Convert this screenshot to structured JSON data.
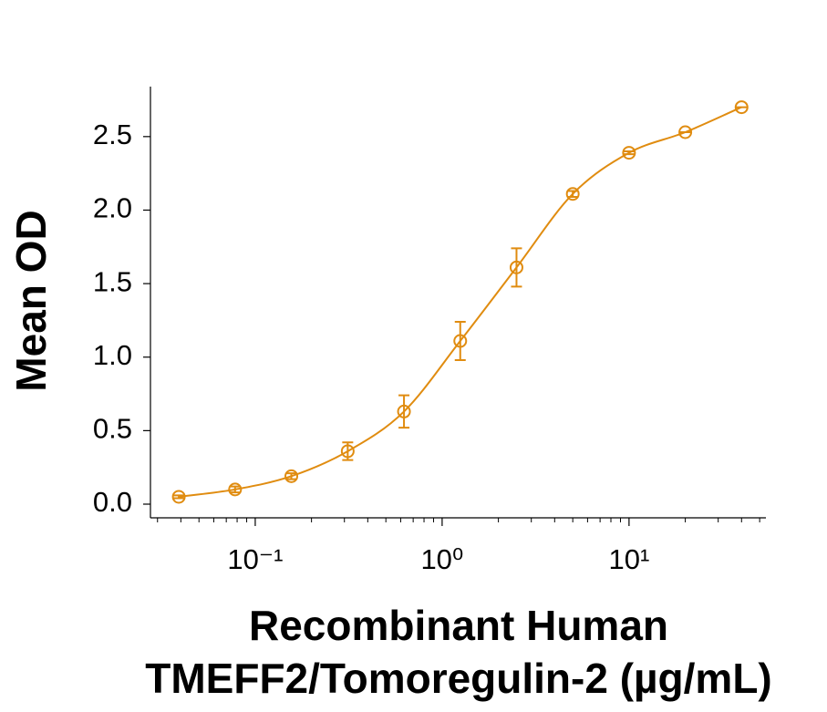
{
  "chart_data": {
    "type": "scatter",
    "ylabel": "Mean OD",
    "xlabel": [
      "Recombinant Human",
      "TMEFF2/Tomoregulin-2 (µg/mL)"
    ],
    "x": [
      0.039,
      0.078,
      0.156,
      0.3125,
      0.625,
      1.25,
      2.5,
      5,
      10,
      20,
      40
    ],
    "series": [
      {
        "color": "#e08c10",
        "values": [
          0.05,
          0.1,
          0.19,
          0.36,
          0.63,
          1.11,
          1.61,
          2.11,
          2.39,
          2.53,
          2.7
        ],
        "errors": [
          0.01,
          0.02,
          0.02,
          0.06,
          0.11,
          0.13,
          0.13,
          0.02,
          0.01,
          0,
          0
        ]
      }
    ],
    "xscale": "log",
    "xlim": [
      0.0275,
      54
    ],
    "xticks": [
      {
        "value": 0.1,
        "label": "10⁻¹"
      },
      {
        "value": 1,
        "label": "10⁰"
      },
      {
        "value": 10,
        "label": "10¹"
      }
    ],
    "minor_ticks": true,
    "ylim": [
      -0.093,
      2.84
    ],
    "yticks": [
      {
        "value": 0,
        "label": "0.0"
      },
      0.5,
      {
        "value": 1,
        "label": "1.0"
      },
      1.5,
      {
        "value": 2,
        "label": "2.0"
      },
      2.5
    ],
    "fit_curve": true
  }
}
